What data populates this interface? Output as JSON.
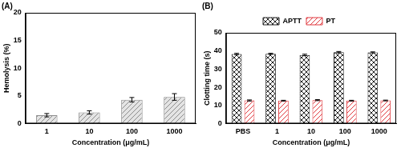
{
  "chart_data": [
    {
      "type": "bar",
      "title": "(A)",
      "x_label": "Concentration (μg/mL)",
      "y_label": "Hemolysis (%)",
      "categories": [
        "1",
        "10",
        "100",
        "1000"
      ],
      "values": [
        1.5,
        2.0,
        4.3,
        4.8
      ],
      "errors": [
        0.3,
        0.3,
        0.4,
        0.6
      ],
      "color": "#8c8c8c",
      "ylim": [
        0,
        20
      ],
      "yticks": [
        0,
        5,
        10,
        15,
        20
      ],
      "grid": false
    },
    {
      "type": "bar",
      "title": "(B)",
      "x_label": "Concentration (μg/mL)",
      "y_label": "Clotting time (s)",
      "categories": [
        "PBS",
        "1",
        "10",
        "100",
        "1000"
      ],
      "series": [
        {
          "name": "APTT",
          "color": "#222222",
          "values": [
            38.3,
            38.4,
            37.8,
            39.3,
            39.2
          ],
          "errors": [
            0.4,
            0.3,
            0.4,
            0.4,
            0.3
          ]
        },
        {
          "name": "PT",
          "color": "#e0393e",
          "values": [
            12.7,
            12.6,
            12.9,
            12.6,
            12.7
          ],
          "errors": [
            0.3,
            0.2,
            0.3,
            0.2,
            0.2
          ]
        }
      ],
      "ylim": [
        0,
        50
      ],
      "yticks": [
        0,
        10,
        20,
        30,
        40,
        50
      ],
      "grid": false,
      "legend": "top"
    }
  ]
}
